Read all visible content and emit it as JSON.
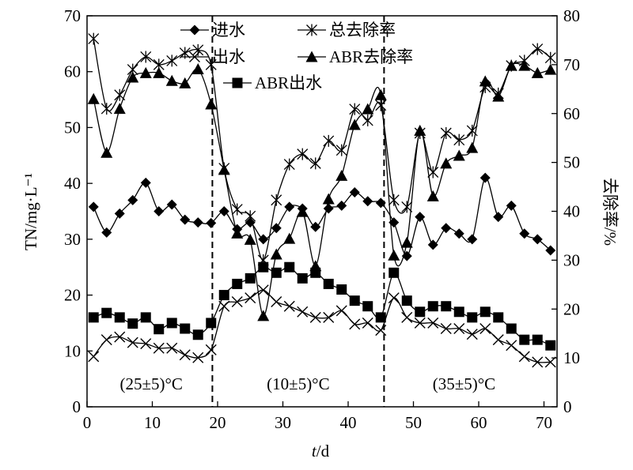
{
  "chart_data": {
    "type": "line",
    "title": "",
    "xlabel_italic": "t",
    "xlabel_unit": "/d",
    "ylabel": "TN/mg·L⁻¹",
    "y2label": "去除率/%",
    "xlim": [
      0,
      72
    ],
    "ylim": [
      0,
      70
    ],
    "y2lim": [
      0,
      80
    ],
    "xticks": [
      0,
      10,
      20,
      30,
      40,
      50,
      60,
      70
    ],
    "yticks": [
      0,
      10,
      20,
      30,
      40,
      50,
      60,
      70
    ],
    "y2ticks": [
      0,
      10,
      20,
      30,
      40,
      50,
      60,
      70,
      80
    ],
    "legend_placement": "top-center",
    "phase_boundaries": [
      19.2,
      45.5
    ],
    "phase_labels": [
      "(25±5)°C",
      "(10±5)°C",
      "(35±5)°C"
    ],
    "x": [
      1,
      3,
      5,
      7,
      9,
      11,
      13,
      15,
      17,
      19,
      21,
      23,
      25,
      27,
      29,
      31,
      33,
      35,
      37,
      39,
      41,
      43,
      45,
      47,
      49,
      51,
      53,
      55,
      57,
      59,
      61,
      63,
      65,
      67,
      69,
      71
    ],
    "series": [
      {
        "name": "进水",
        "axis": "left",
        "marker": "diamond",
        "values": [
          35.8,
          31.2,
          34.6,
          37,
          40.1,
          35,
          36.2,
          33.5,
          33,
          32.9,
          35,
          31.8,
          33,
          30,
          32,
          35.8,
          35.5,
          32.2,
          35.5,
          36,
          38.4,
          36.8,
          36.5,
          33,
          27,
          34,
          29,
          32,
          31,
          30,
          41,
          34,
          36,
          31,
          30,
          28
        ]
      },
      {
        "name": "出水",
        "axis": "left",
        "marker": "x",
        "values": [
          9,
          12,
          12.5,
          11.5,
          11.3,
          10.5,
          10.5,
          9.3,
          8.8,
          10.2,
          18,
          18.8,
          19.5,
          20.9,
          18.8,
          18,
          17,
          16,
          16,
          17.2,
          14.8,
          15,
          13.7,
          19.5,
          16,
          15,
          15,
          14,
          14,
          13,
          14,
          12,
          11,
          9,
          8,
          8
        ]
      },
      {
        "name": "ABR出水",
        "axis": "left",
        "marker": "square",
        "values": [
          16,
          16.8,
          16,
          14.9,
          16,
          13.9,
          15,
          14,
          12.9,
          15,
          20,
          22,
          23,
          25,
          24,
          25,
          23,
          24,
          22,
          21,
          19,
          18,
          16,
          24,
          19,
          17,
          18,
          18,
          17,
          16,
          17,
          16,
          14,
          12,
          12,
          11
        ]
      },
      {
        "name": "总去除率",
        "axis": "right",
        "marker": "asterisk",
        "values": [
          75.3,
          61,
          63.8,
          69,
          71.6,
          70,
          70.8,
          72.4,
          73,
          70,
          48.8,
          40.4,
          39,
          30,
          42.3,
          49.6,
          51.7,
          49.8,
          54.4,
          52.5,
          60.9,
          58.6,
          61.7,
          42.3,
          40.9,
          56,
          48,
          56,
          54.6,
          56.5,
          65.4,
          64.1,
          69.8,
          70.8,
          73.2,
          71.4
        ]
      },
      {
        "name": "ABR去除率",
        "axis": "right",
        "marker": "triangle",
        "values": [
          63,
          52,
          61,
          67.4,
          68.3,
          68.3,
          66.7,
          66.2,
          69.1,
          61.9,
          48.5,
          35.5,
          34.2,
          18.6,
          31.2,
          34.4,
          39.9,
          28.8,
          42.5,
          47.3,
          57.7,
          60.9,
          63.8,
          31,
          33.6,
          56.5,
          43.1,
          49.8,
          51.4,
          53,
          66.6,
          63.5,
          69.8,
          69.8,
          68.3,
          69
        ]
      }
    ],
    "legend_order": [
      0,
      3,
      1,
      4,
      2
    ]
  }
}
